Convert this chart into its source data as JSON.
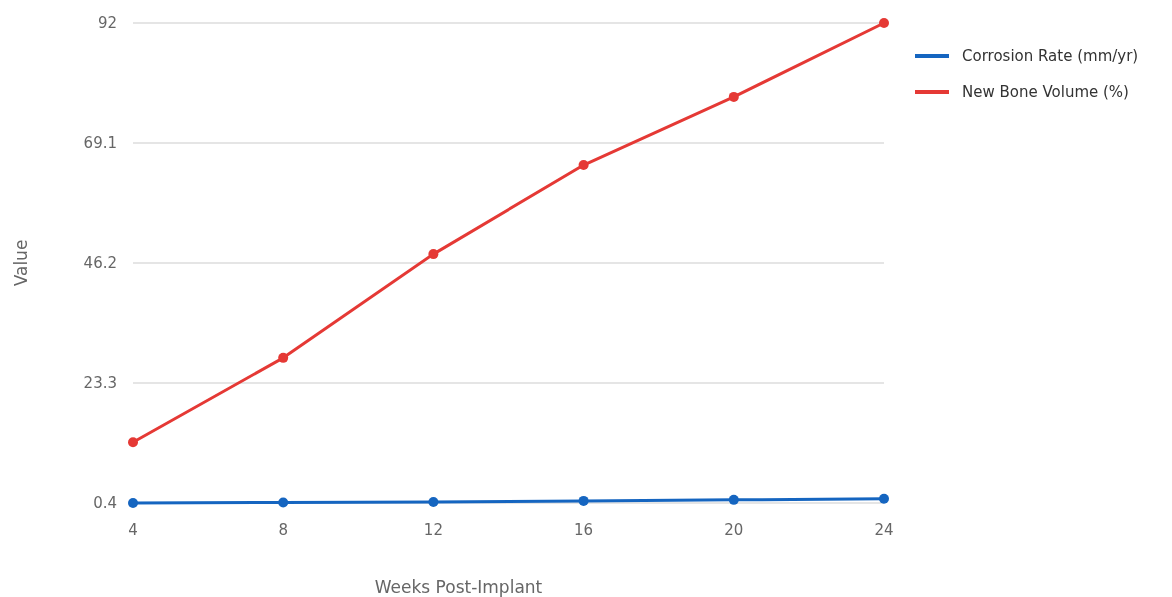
{
  "chart_data": {
    "type": "line",
    "xlabel": "Weeks Post-Implant",
    "ylabel": "Value",
    "x": [
      4,
      8,
      12,
      16,
      20,
      24
    ],
    "series": [
      {
        "name": "Corrosion Rate (mm/yr)",
        "color": "#1565c0",
        "values": [
          0.4,
          0.5,
          0.6,
          0.8,
          1.0,
          1.2
        ]
      },
      {
        "name": "New Bone Volume (%)",
        "color": "#e53935",
        "values": [
          12.0,
          28.1,
          47.9,
          64.9,
          77.9,
          92
        ]
      }
    ],
    "xlim": [
      4,
      24
    ],
    "xticks": [
      4,
      8,
      12,
      16,
      20,
      24
    ],
    "ylim": [
      0.4,
      92
    ],
    "yticks": [
      0.4,
      23.3,
      46.2,
      69.1,
      92
    ],
    "grid": "y",
    "legend": "top right",
    "marker": "circle",
    "line_style": "solid"
  }
}
